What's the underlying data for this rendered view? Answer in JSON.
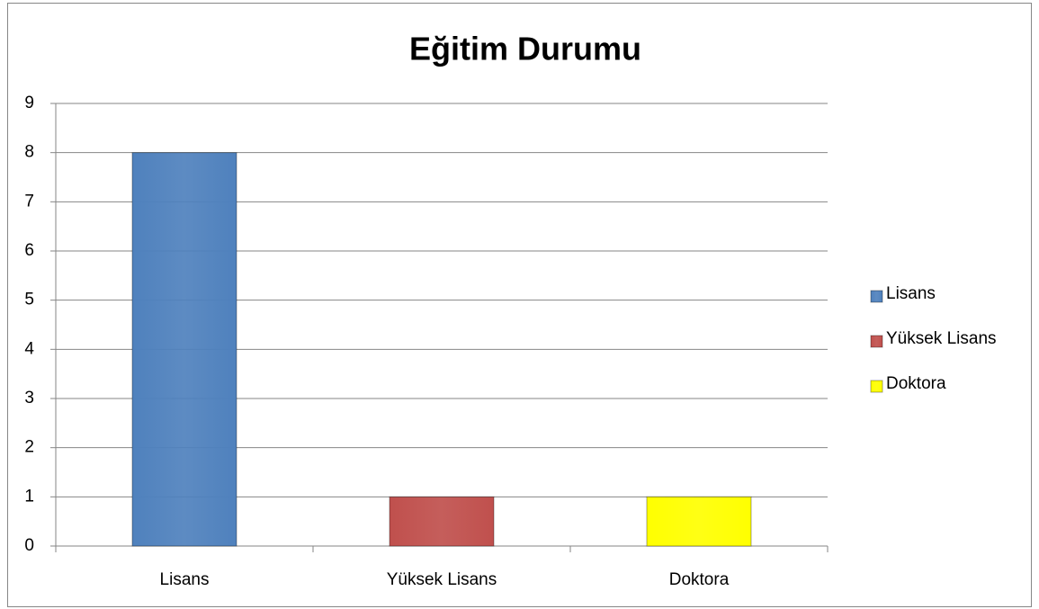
{
  "chart_data": {
    "type": "bar",
    "title": "Eğitim Durumu",
    "categories": [
      "Lisans",
      "Yüksek Lisans",
      "Doktora"
    ],
    "values": [
      8,
      1,
      1
    ],
    "colors": [
      "#4f81bd",
      "#c0504d",
      "#ffff00"
    ],
    "ylim": [
      0,
      9
    ],
    "yticks": [
      0,
      1,
      2,
      3,
      4,
      5,
      6,
      7,
      8,
      9
    ],
    "grid": true,
    "legend": "right"
  }
}
